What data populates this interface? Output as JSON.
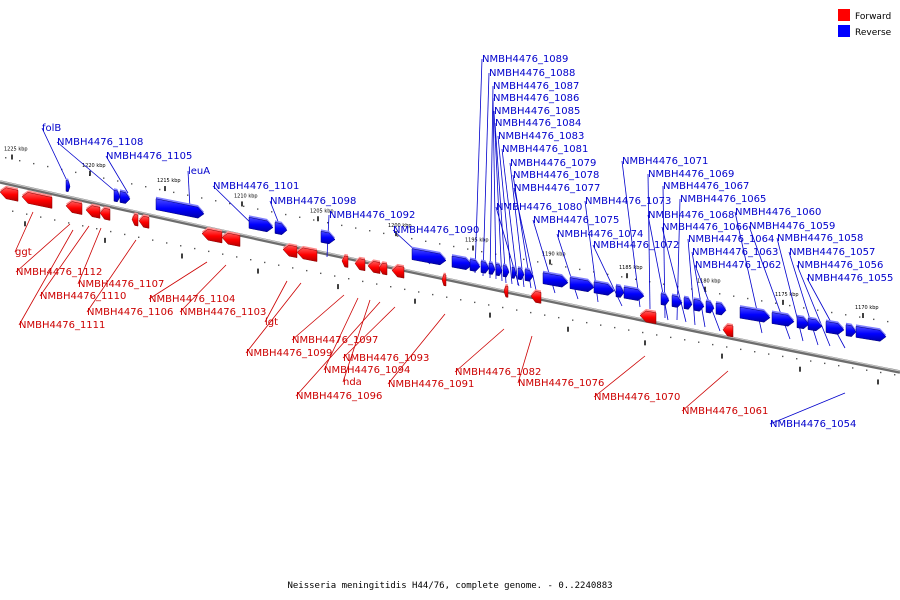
{
  "caption": "Neisseria meningitidis H44/76, complete genome. - 0..2240883",
  "legend": [
    {
      "label": "Forward",
      "color": "#ff0000"
    },
    {
      "label": "Reverse",
      "color": "#0000ff"
    }
  ],
  "colors": {
    "forward": "#ff0000",
    "reverse": "#0000ff",
    "axis": "#808080"
  },
  "scale_labels": [
    "1225 kbp",
    "1220 kbp",
    "1215 kbp",
    "1210 kbp",
    "1205 kbp",
    "1200 kbp",
    "1195 kbp",
    "1190 kbp",
    "1185 kbp",
    "1180 kbp",
    "1175 kbp",
    "1170 kbp"
  ],
  "reverse_genes": [
    {
      "name": "folB"
    },
    {
      "name": "NMBH4476_1108"
    },
    {
      "name": "NMBH4476_1105"
    },
    {
      "name": "leuA"
    },
    {
      "name": "NMBH4476_1101"
    },
    {
      "name": "NMBH4476_1098"
    },
    {
      "name": "NMBH4476_1092"
    },
    {
      "name": "NMBH4476_1090"
    },
    {
      "name": "NMBH4476_1089"
    },
    {
      "name": "NMBH4476_1088"
    },
    {
      "name": "NMBH4476_1087"
    },
    {
      "name": "NMBH4476_1086"
    },
    {
      "name": "NMBH4476_1085"
    },
    {
      "name": "NMBH4476_1084"
    },
    {
      "name": "NMBH4476_1083"
    },
    {
      "name": "NMBH4476_1081"
    },
    {
      "name": "NMBH4476_1079"
    },
    {
      "name": "NMBH4476_1078"
    },
    {
      "name": "NMBH4476_1077"
    },
    {
      "name": "NMBH4476_1080"
    },
    {
      "name": "NMBH4476_1075"
    },
    {
      "name": "NMBH4476_1074"
    },
    {
      "name": "NMBH4476_1073"
    },
    {
      "name": "NMBH4476_1072"
    },
    {
      "name": "NMBH4476_1071"
    },
    {
      "name": "NMBH4476_1069"
    },
    {
      "name": "NMBH4476_1067"
    },
    {
      "name": "NMBH4476_1065"
    },
    {
      "name": "NMBH4476_1068"
    },
    {
      "name": "NMBH4476_1066"
    },
    {
      "name": "NMBH4476_1064"
    },
    {
      "name": "NMBH4476_1063"
    },
    {
      "name": "NMBH4476_1062"
    },
    {
      "name": "NMBH4476_1060"
    },
    {
      "name": "NMBH4476_1059"
    },
    {
      "name": "NMBH4476_1058"
    },
    {
      "name": "NMBH4476_1057"
    },
    {
      "name": "NMBH4476_1056"
    },
    {
      "name": "NMBH4476_1055"
    },
    {
      "name": "NMBH4476_1054"
    }
  ],
  "forward_genes": [
    {
      "name": "ggt"
    },
    {
      "name": "NMBH4476_1112"
    },
    {
      "name": "NMBH4476_1110"
    },
    {
      "name": "NMBH4476_1111"
    },
    {
      "name": "NMBH4476_1107"
    },
    {
      "name": "NMBH4476_1106"
    },
    {
      "name": "NMBH4476_1104"
    },
    {
      "name": "NMBH4476_1103"
    },
    {
      "name": "lgt"
    },
    {
      "name": "NMBH4476_1099"
    },
    {
      "name": "NMBH4476_1097"
    },
    {
      "name": "NMBH4476_1094"
    },
    {
      "name": "hda"
    },
    {
      "name": "NMBH4476_1096"
    },
    {
      "name": "NMBH4476_1093"
    },
    {
      "name": "NMBH4476_1091"
    },
    {
      "name": "NMBH4476_1082"
    },
    {
      "name": "NMBH4476_1076"
    },
    {
      "name": "NMBH4476_1070"
    },
    {
      "name": "NMBH4476_1061"
    }
  ]
}
